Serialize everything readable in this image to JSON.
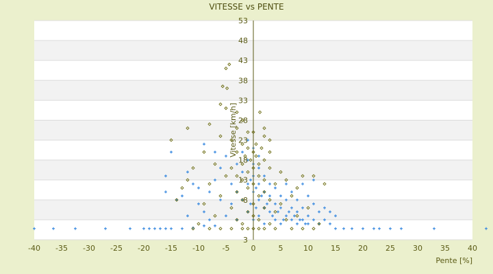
{
  "chart_data": {
    "type": "scatter",
    "title": "VITESSE vs PENTE",
    "xlabel": "Pente [%]",
    "ylabel": "Vitesse [km/h]",
    "xlim": [
      -40,
      40
    ],
    "ylim": [
      -2,
      53
    ],
    "xticks": [
      -40,
      -35,
      -30,
      -25,
      -20,
      -15,
      -10,
      -5,
      0,
      5,
      10,
      15,
      20,
      25,
      30,
      35,
      40
    ],
    "yticks": [
      53,
      48,
      43,
      38,
      33,
      28,
      23,
      18,
      13,
      8,
      3
    ],
    "grid": "horizontal bands",
    "legend": "none",
    "colors": {
      "series1": "#3a8ae0",
      "series2": "#6b6b10",
      "axis": "#5a5a14",
      "background": "#ebf0cd"
    },
    "series": [
      {
        "marker": "plus",
        "color": "#3a8ae0",
        "points": [
          [
            -40,
            0.8
          ],
          [
            -36.5,
            0.8
          ],
          [
            -32.5,
            0.8
          ],
          [
            -27,
            0.8
          ],
          [
            -22.5,
            0.8
          ],
          [
            -20,
            0.8
          ],
          [
            -19,
            0.8
          ],
          [
            -18,
            0.8
          ],
          [
            -17,
            0.8
          ],
          [
            -16,
            0.8
          ],
          [
            -15,
            0.8
          ],
          [
            -13,
            0.8
          ],
          [
            -11,
            1
          ],
          [
            -9,
            1.5
          ],
          [
            -7,
            1.5
          ],
          [
            15,
            0.8
          ],
          [
            16.5,
            0.8
          ],
          [
            18,
            0.8
          ],
          [
            20,
            0.8
          ],
          [
            22,
            0.8
          ],
          [
            23,
            0.8
          ],
          [
            25,
            0.8
          ],
          [
            27,
            0.8
          ],
          [
            33,
            0.8
          ],
          [
            42.5,
            0.8
          ],
          [
            -15,
            20
          ],
          [
            -16,
            14
          ],
          [
            -16,
            10
          ],
          [
            -14,
            8
          ],
          [
            -13,
            9
          ],
          [
            -12,
            15
          ],
          [
            -11,
            12
          ],
          [
            -10,
            11
          ],
          [
            -10,
            7
          ],
          [
            -9,
            5
          ],
          [
            -8,
            10
          ],
          [
            -7,
            13
          ],
          [
            -6,
            16
          ],
          [
            -6,
            8
          ],
          [
            -5,
            4
          ],
          [
            -5,
            19
          ],
          [
            -4,
            12
          ],
          [
            -4,
            7
          ],
          [
            -3,
            17
          ],
          [
            -3,
            10
          ],
          [
            -3,
            3
          ],
          [
            -2,
            15
          ],
          [
            -2,
            8
          ],
          [
            -2,
            20
          ],
          [
            -1,
            12
          ],
          [
            -1,
            5
          ],
          [
            -1,
            18
          ],
          [
            0,
            10
          ],
          [
            0,
            14
          ],
          [
            0,
            3
          ],
          [
            0,
            17
          ],
          [
            1,
            8
          ],
          [
            1,
            12
          ],
          [
            1,
            16
          ],
          [
            1,
            4
          ],
          [
            2,
            6
          ],
          [
            2,
            10
          ],
          [
            2,
            14
          ],
          [
            2,
            2
          ],
          [
            3,
            9
          ],
          [
            3,
            12
          ],
          [
            3,
            5
          ],
          [
            4,
            7
          ],
          [
            4,
            11
          ],
          [
            4,
            3
          ],
          [
            5,
            6
          ],
          [
            5,
            9
          ],
          [
            5,
            2
          ],
          [
            6,
            4
          ],
          [
            6,
            8
          ],
          [
            6,
            12
          ],
          [
            7,
            3
          ],
          [
            7,
            6
          ],
          [
            7,
            10
          ],
          [
            8,
            2
          ],
          [
            8,
            5
          ],
          [
            8,
            8
          ],
          [
            9,
            3
          ],
          [
            9,
            6
          ],
          [
            10,
            2
          ],
          [
            10,
            4
          ],
          [
            10,
            9
          ],
          [
            11,
            3
          ],
          [
            11,
            7
          ],
          [
            12,
            2
          ],
          [
            12,
            5
          ],
          [
            13,
            3
          ],
          [
            13,
            6
          ],
          [
            14,
            2
          ],
          [
            15,
            4
          ],
          [
            14,
            5
          ],
          [
            9,
            12
          ],
          [
            11,
            13
          ],
          [
            -8,
            3
          ],
          [
            -12,
            4
          ],
          [
            -7,
            20
          ],
          [
            -9,
            22
          ],
          [
            0,
            21
          ],
          [
            -1,
            23
          ],
          [
            -0.5,
            7
          ],
          [
            0.5,
            6
          ],
          [
            1.5,
            9
          ],
          [
            2.5,
            7
          ],
          [
            3.5,
            4
          ],
          [
            4.5,
            5
          ],
          [
            5.5,
            3
          ],
          [
            6.5,
            5
          ],
          [
            7.5,
            4
          ],
          [
            8.5,
            3
          ],
          [
            9.5,
            2
          ],
          [
            -0.5,
            13
          ],
          [
            0.5,
            11
          ],
          [
            1,
            19
          ]
        ]
      },
      {
        "marker": "diamond",
        "color": "#6b6b10",
        "points": [
          [
            -4.4,
            42
          ],
          [
            -5,
            41
          ],
          [
            -5.6,
            36.5
          ],
          [
            -4.8,
            36
          ],
          [
            -6,
            32
          ],
          [
            -5,
            31
          ],
          [
            -3,
            30
          ],
          [
            1.2,
            30
          ],
          [
            -2,
            28
          ],
          [
            -8,
            27
          ],
          [
            -12,
            26
          ],
          [
            -3,
            26
          ],
          [
            -1,
            25
          ],
          [
            0,
            25
          ],
          [
            2,
            24
          ],
          [
            -6,
            24
          ],
          [
            -15,
            23
          ],
          [
            -4,
            23
          ],
          [
            -2,
            22
          ],
          [
            0.5,
            22
          ],
          [
            1.5,
            21
          ],
          [
            -1,
            21
          ],
          [
            0,
            20
          ],
          [
            -3,
            20
          ],
          [
            -9,
            20
          ],
          [
            3,
            20
          ],
          [
            -1.5,
            19
          ],
          [
            0.5,
            19
          ],
          [
            -0.5,
            18
          ],
          [
            2,
            18
          ],
          [
            -2,
            17
          ],
          [
            1,
            17
          ],
          [
            -7,
            17
          ],
          [
            -11,
            16
          ],
          [
            -4,
            16
          ],
          [
            0,
            16
          ],
          [
            3,
            16
          ],
          [
            5,
            15
          ],
          [
            -1,
            15
          ],
          [
            -3,
            14
          ],
          [
            1,
            14
          ],
          [
            -5,
            14
          ],
          [
            6,
            13
          ],
          [
            -2,
            13
          ],
          [
            2,
            13
          ],
          [
            -8,
            12
          ],
          [
            0,
            12
          ],
          [
            4,
            12
          ],
          [
            -13,
            11
          ],
          [
            -1,
            11
          ],
          [
            8,
            11
          ],
          [
            -3,
            10
          ],
          [
            2,
            10
          ],
          [
            -6,
            9
          ],
          [
            1,
            9
          ],
          [
            7,
            9
          ],
          [
            -2,
            8
          ],
          [
            3,
            8
          ],
          [
            -9,
            7
          ],
          [
            0,
            7
          ],
          [
            5,
            7
          ],
          [
            -4,
            6
          ],
          [
            2,
            6
          ],
          [
            10,
            6
          ],
          [
            -1,
            5
          ],
          [
            4,
            5
          ],
          [
            -7,
            4
          ],
          [
            0,
            4
          ],
          [
            8,
            4
          ],
          [
            -3,
            3
          ],
          [
            1,
            3
          ],
          [
            6,
            3
          ],
          [
            -10,
            2
          ],
          [
            -2,
            2
          ],
          [
            3,
            2
          ],
          [
            12,
            2
          ],
          [
            -11,
            0.8
          ],
          [
            -8,
            0.8
          ],
          [
            -6,
            0.8
          ],
          [
            -4,
            0.8
          ],
          [
            -2,
            0.8
          ],
          [
            -1,
            0.8
          ],
          [
            0,
            0.8
          ],
          [
            1,
            0.8
          ],
          [
            2,
            0.8
          ],
          [
            4,
            0.8
          ],
          [
            7,
            0.8
          ],
          [
            9,
            0.8
          ],
          [
            11,
            0.8
          ],
          [
            13,
            12
          ],
          [
            11,
            14
          ],
          [
            9,
            14
          ],
          [
            -12,
            13
          ],
          [
            -14,
            8
          ],
          [
            3,
            23
          ],
          [
            2,
            26
          ]
        ]
      }
    ]
  }
}
